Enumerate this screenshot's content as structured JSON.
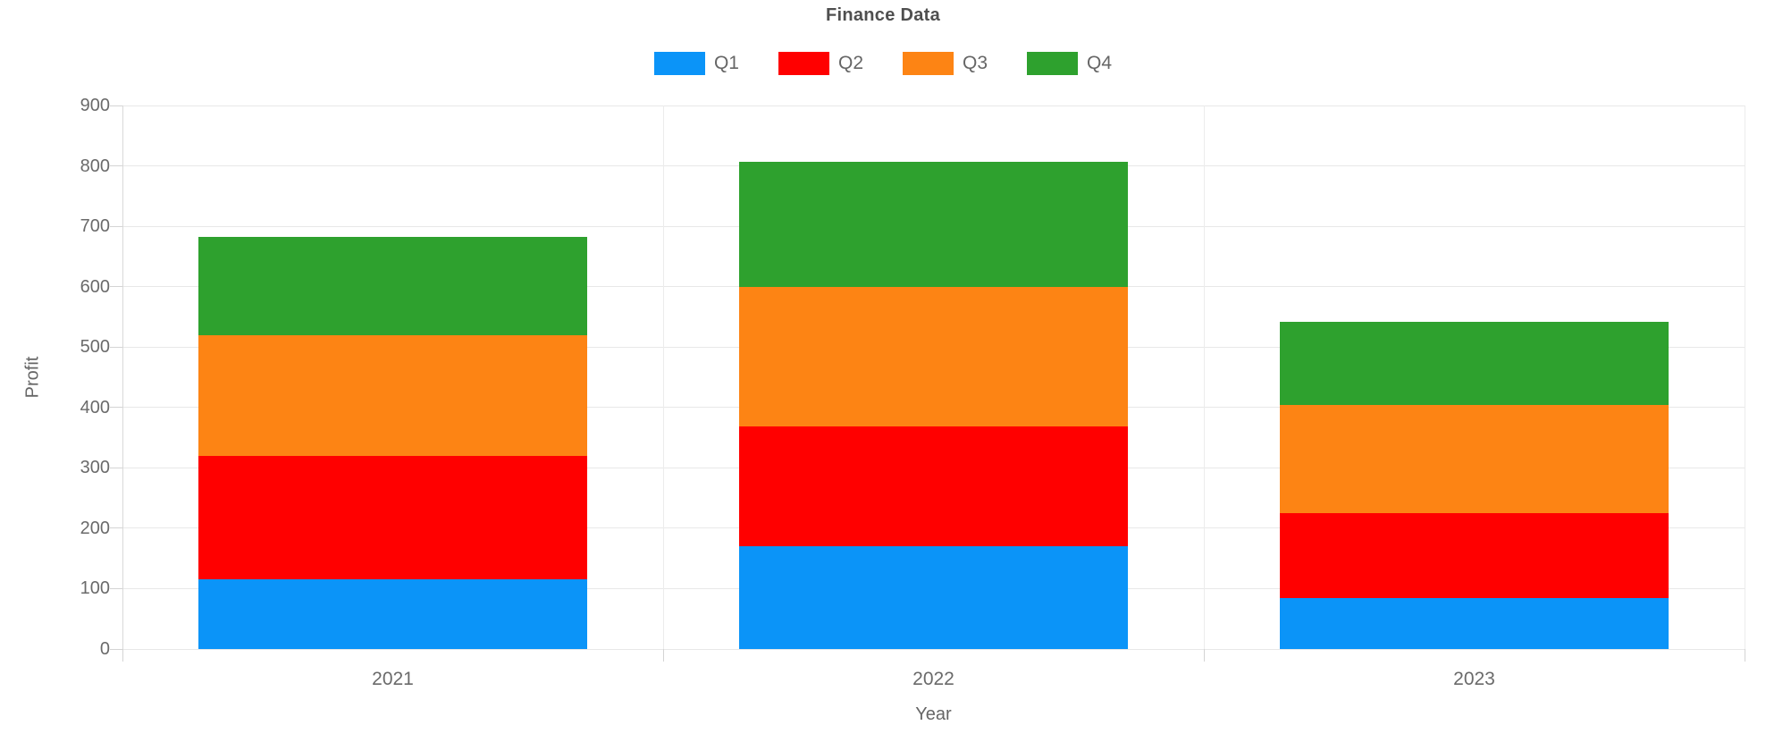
{
  "chart_data": {
    "type": "bar",
    "stacked": true,
    "title": "Finance Data",
    "xlabel": "Year",
    "ylabel": "Profit",
    "categories": [
      "2021",
      "2022",
      "2023"
    ],
    "series": [
      {
        "name": "Q1",
        "color": "#0b94f8",
        "values": [
          115,
          170,
          85
        ]
      },
      {
        "name": "Q2",
        "color": "#ff0000",
        "values": [
          205,
          198,
          140
        ]
      },
      {
        "name": "Q3",
        "color": "#fd8414",
        "values": [
          200,
          231,
          179
        ]
      },
      {
        "name": "Q4",
        "color": "#2ea12e",
        "values": [
          162,
          208,
          138
        ]
      }
    ],
    "totals": [
      682,
      807,
      542
    ],
    "ylim": [
      0,
      900
    ],
    "ytick_step": 100,
    "ytick_labels": [
      "0",
      "100",
      "200",
      "300",
      "400",
      "500",
      "600",
      "700",
      "800",
      "900"
    ],
    "grid": true,
    "legend_position": "top",
    "bar_width_fraction": 0.72
  }
}
